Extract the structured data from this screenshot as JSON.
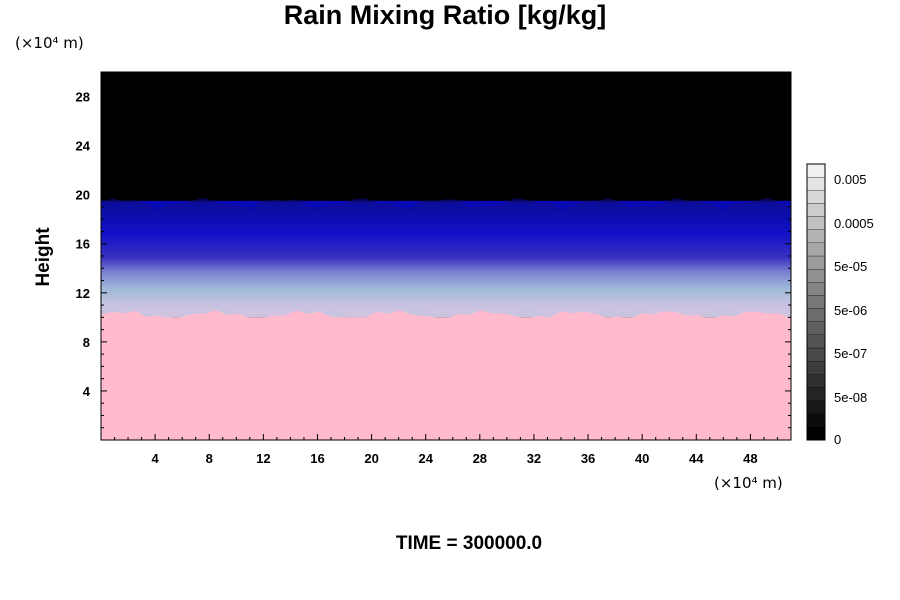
{
  "chart_data": {
    "type": "heatmap",
    "title": "Rain Mixing Ratio [kg/kg]",
    "ylabel": "Height",
    "x_scale_label": "(×10⁴ m)",
    "y_scale_label": "(×10⁴ m)",
    "xlim": [
      0,
      51
    ],
    "ylim": [
      0,
      30
    ],
    "x_ticks": [
      4,
      8,
      12,
      16,
      20,
      24,
      28,
      32,
      36,
      40,
      44,
      48
    ],
    "y_ticks": [
      4,
      8,
      12,
      16,
      20,
      24,
      28
    ],
    "time_label": "TIME = 300000.0",
    "colorbar": {
      "labels": [
        "0.005",
        "0.0005",
        "5e-05",
        "5e-06",
        "5e-07",
        "5e-08",
        "0"
      ],
      "colors": [
        "#000000",
        "#0c0c0c",
        "#181818",
        "#242424",
        "#303030",
        "#3c3c3c",
        "#484848",
        "#545454",
        "#606060",
        "#6c6c6c",
        "#787878",
        "#848484",
        "#909090",
        "#9c9c9c",
        "#a8a8a8",
        "#b4b4b4",
        "#c0c0c0",
        "#cccccc",
        "#d8d8d8",
        "#e4e4e4",
        "#f0f0f0"
      ]
    },
    "layers": [
      {
        "name": "top",
        "y_range": [
          19.5,
          30
        ],
        "color": "#000000"
      },
      {
        "name": "deep-blue",
        "y_range": [
          16.5,
          19.5
        ],
        "color": "#0a0ab4"
      },
      {
        "name": "blue",
        "y_range": [
          14.5,
          16.5
        ],
        "color": "#2828c8"
      },
      {
        "name": "lavender",
        "y_range": [
          12.5,
          14.5
        ],
        "color": "#8c8cd2"
      },
      {
        "name": "light-lavender",
        "y_range": [
          10,
          12.5
        ],
        "color": "#c8c4e0"
      },
      {
        "name": "pink",
        "y_range": [
          0,
          10
        ],
        "color": "#ffbacd"
      }
    ]
  }
}
